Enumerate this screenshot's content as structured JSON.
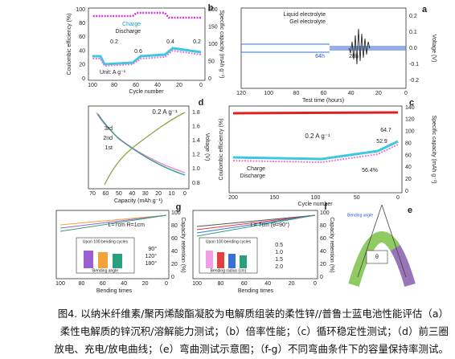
{
  "panels": {
    "a": {
      "label": "a",
      "legend": [
        "Liquid electrolyte",
        "Gel electrolyte"
      ],
      "annotations": [
        "64h",
        "28h"
      ],
      "x_label": "Test time (hours)",
      "y_label": "Voltage (V)",
      "x_ticks": [
        "0",
        "20",
        "40",
        "60",
        "80",
        "100",
        "120"
      ],
      "y_ticks": [
        "0.2",
        "0.1",
        "0.0",
        "-0.1",
        "-0.2"
      ]
    },
    "b": {
      "label": "b",
      "legend": [
        "Charge",
        "Discharge"
      ],
      "rates": [
        "0.2",
        "0.4",
        "0.6",
        "0.2"
      ],
      "unit": "Unit: A g⁻¹",
      "x_label": "Cycle number",
      "y_label": "Specific capacity (mAh g⁻¹)",
      "y2_label": "Coulombic efficiency (%)",
      "x_ticks": [
        "0",
        "20",
        "40",
        "60",
        "80",
        "100"
      ],
      "y_ticks": [
        "200",
        "150",
        "100",
        "50",
        "0"
      ],
      "y2_ticks": [
        "100",
        "80",
        "60",
        "40",
        "20",
        "0"
      ]
    },
    "c": {
      "label": "c",
      "rate": "0.2 A g⁻¹",
      "annotations": [
        "64.7",
        "52.9",
        "56.4%"
      ],
      "legend": [
        "Charge",
        "Discharge"
      ],
      "x_label": "Cycle number",
      "y_label": "Specific capacity (mAh g⁻¹)",
      "y2_label": "Coulombic efficiency (%)",
      "x_ticks": [
        "0",
        "50",
        "100",
        "150",
        "200"
      ],
      "y_ticks": [
        "140",
        "120",
        "100",
        "80",
        "60",
        "40",
        "20",
        "0"
      ]
    },
    "d": {
      "label": "d",
      "rate": "0.2 A g⁻¹",
      "legend": [
        "3rd",
        "2nd",
        "1st"
      ],
      "x_label": "Capacity (mAh g⁻¹)",
      "y_label": "Voltage (V)",
      "x_ticks": [
        "0",
        "10",
        "20",
        "30",
        "40",
        "50",
        "60",
        "70"
      ],
      "y_ticks": [
        "1.8",
        "1.6",
        "1.4",
        "1.2",
        "1.0",
        "0.8"
      ]
    },
    "e": {
      "label": "e",
      "annotations": [
        "Bending angle",
        "θ"
      ]
    },
    "f": {
      "label": "f",
      "condition": "L= 7cm (θ=90°)",
      "legend": [
        "0.5",
        "1.0",
        "1.5",
        "2.0"
      ],
      "inset_title": "Upon 100 bending cycles",
      "inset_x_label": "Bending radius (cm)",
      "x_label": "Bending times",
      "y_label": "Capacity retention (%)",
      "x_ticks": [
        "0",
        "20",
        "40",
        "60",
        "80",
        "100"
      ],
      "y_ticks": [
        "100",
        "80",
        "60",
        "40",
        "20",
        "0"
      ]
    },
    "g": {
      "label": "g",
      "condition": "L=7cm R=1cm",
      "legend": [
        "90°",
        "120°",
        "180°"
      ],
      "inset_title": "Upon 100 bending cycles",
      "inset_x_label": "Bending angle",
      "x_label": "Bending times",
      "y_label": "Capacity retention (%)",
      "x_ticks": [
        "0",
        "20",
        "40",
        "60",
        "80",
        "100"
      ],
      "y_ticks": [
        "100",
        "80",
        "60",
        "40",
        "20",
        "0"
      ]
    }
  },
  "caption": {
    "lines": [
      "图4. 以纳米纤维素/聚丙烯酸酯凝胶为电解质组装的柔性锌//普鲁士蓝电池性能评估（a）",
      "柔性电解质的锌沉积/溶解能力测试；（b）倍率性能；（c）循环稳定性测试；（d）前三圈",
      "放电、充电/放电曲线；（e）弯曲测试示意图；（f-g）不同弯曲条件下的容量保持率测试。"
    ]
  }
}
